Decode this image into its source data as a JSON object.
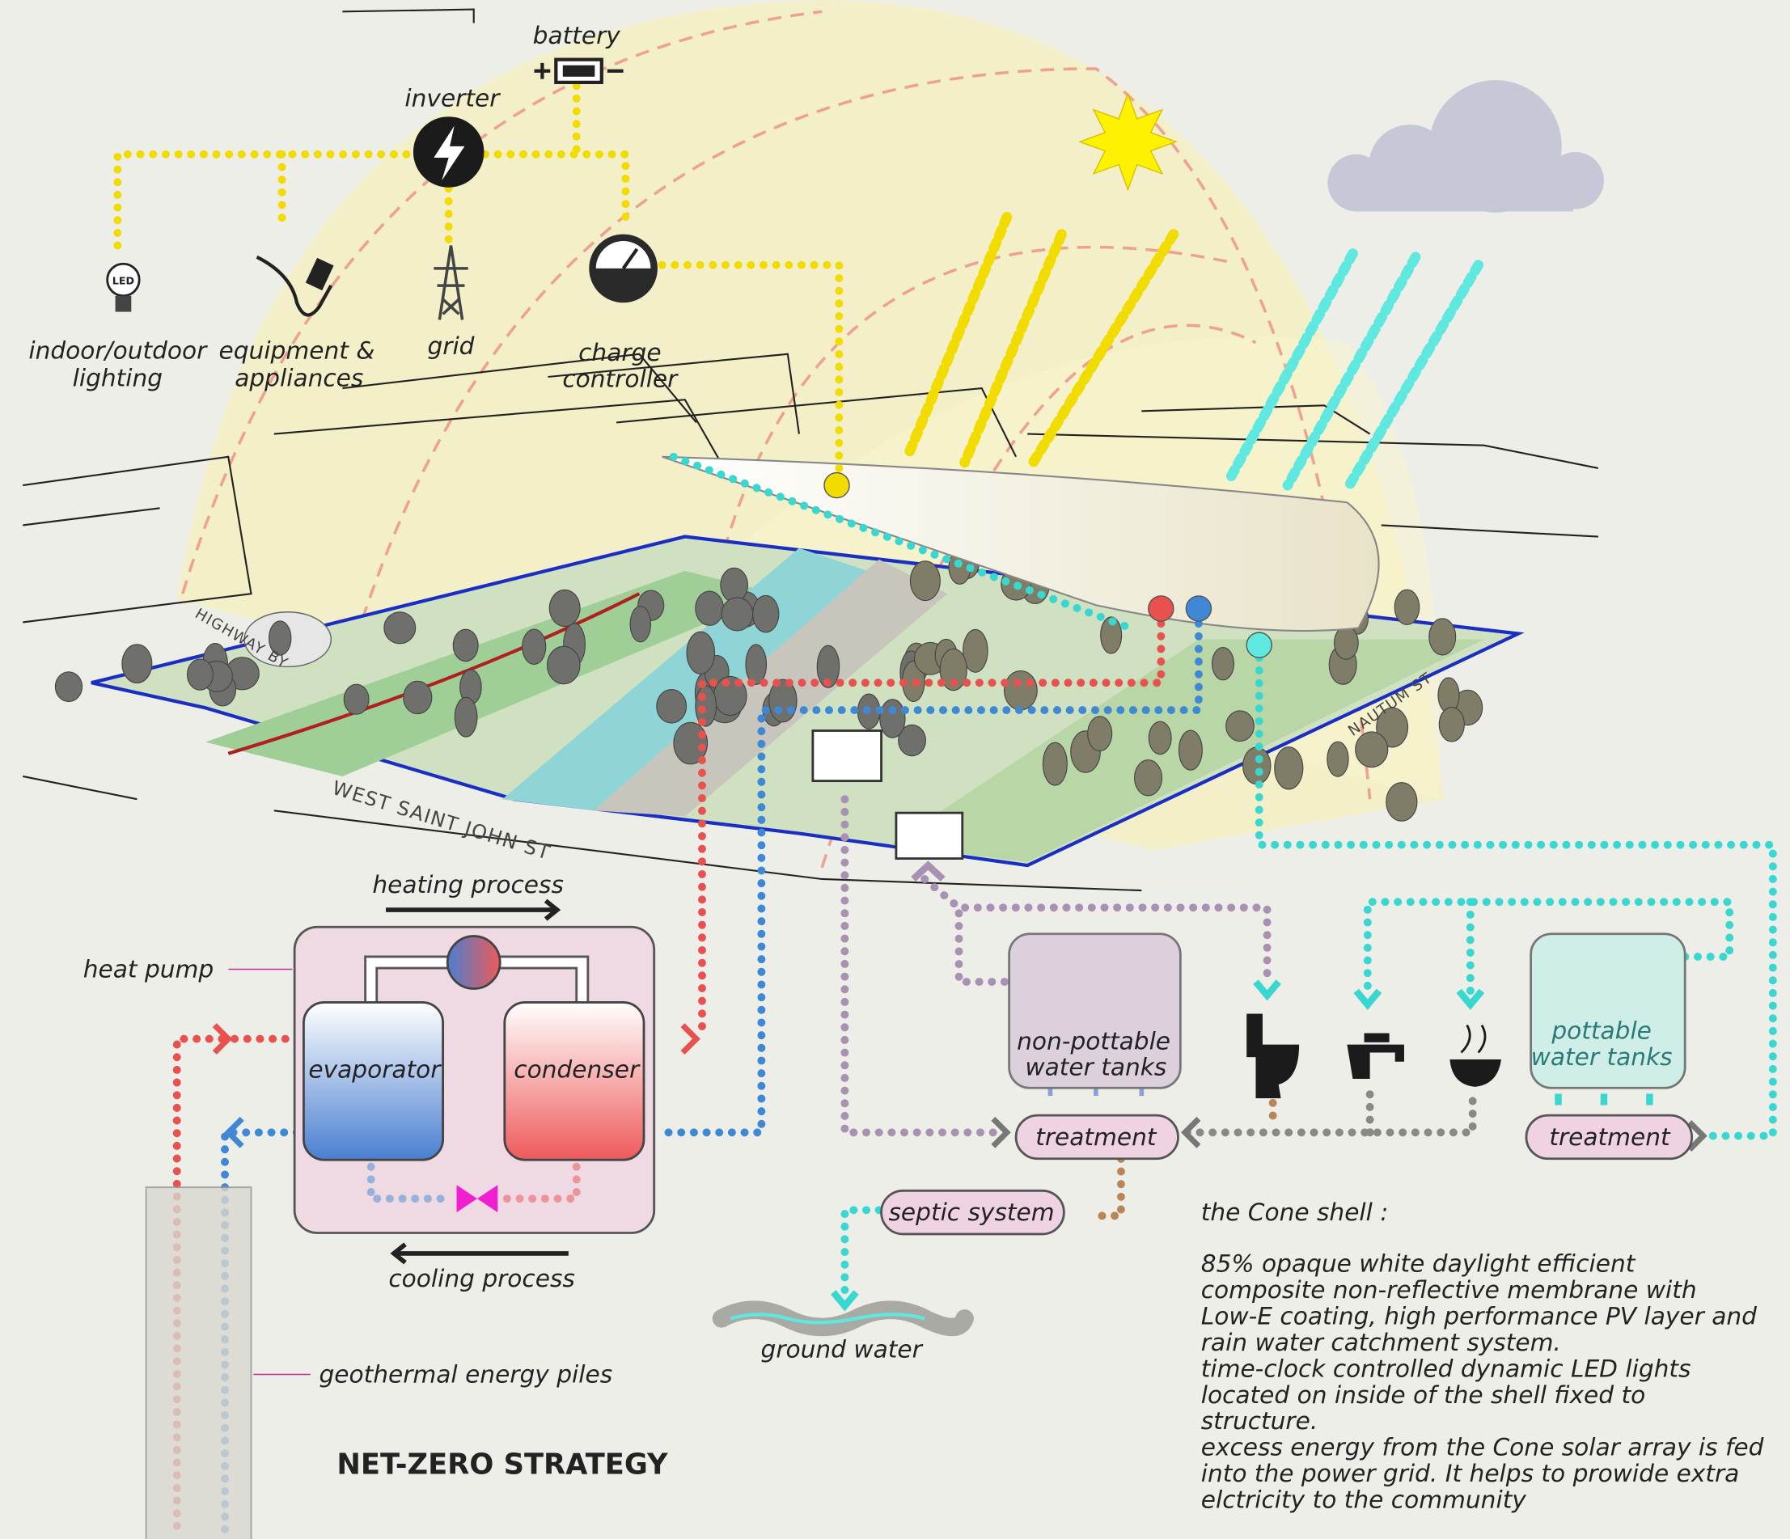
{
  "power": {
    "battery": "battery",
    "inverter": "inverter",
    "grid": "grid",
    "led": "LED",
    "lighting": [
      "indoor/outdoor",
      "lighting"
    ],
    "appliances": [
      "equipment &",
      "appliances"
    ],
    "charge_controller": [
      "charge",
      "controller"
    ]
  },
  "site": {
    "streets": [
      "HIGHWAY BY",
      "WEST SAINT JOHN ST",
      "NAUTUM ST"
    ]
  },
  "heat_pump": {
    "label": "heat pump",
    "heating": "heating process",
    "cooling": "cooling process",
    "evaporator": "evaporator",
    "condenser": "condenser",
    "piles": "geothermal energy piles"
  },
  "water": {
    "non_potable": [
      "non-pottable",
      "water tanks"
    ],
    "potable": [
      "pottable",
      "water tanks"
    ],
    "treatment": [
      "treatment",
      "treatment"
    ],
    "septic": "septic system",
    "ground_water": "ground water"
  },
  "title": "NET-ZERO STRATEGY",
  "cone_shell": {
    "heading": "the Cone shell :",
    "lines": [
      "85% opaque white  daylight efficient",
      "composite  non-reflective membrane with",
      "Low-E coating, high performance PV  layer and",
      "rain water catchment system.",
      "time-clock controlled dynamic LED lights",
      "located on inside of the shell fixed to",
      "structure.",
      "excess energy from the Cone solar array is fed",
      "into the power grid. It helps to prowide extra",
      "elctricity to the community"
    ]
  }
}
